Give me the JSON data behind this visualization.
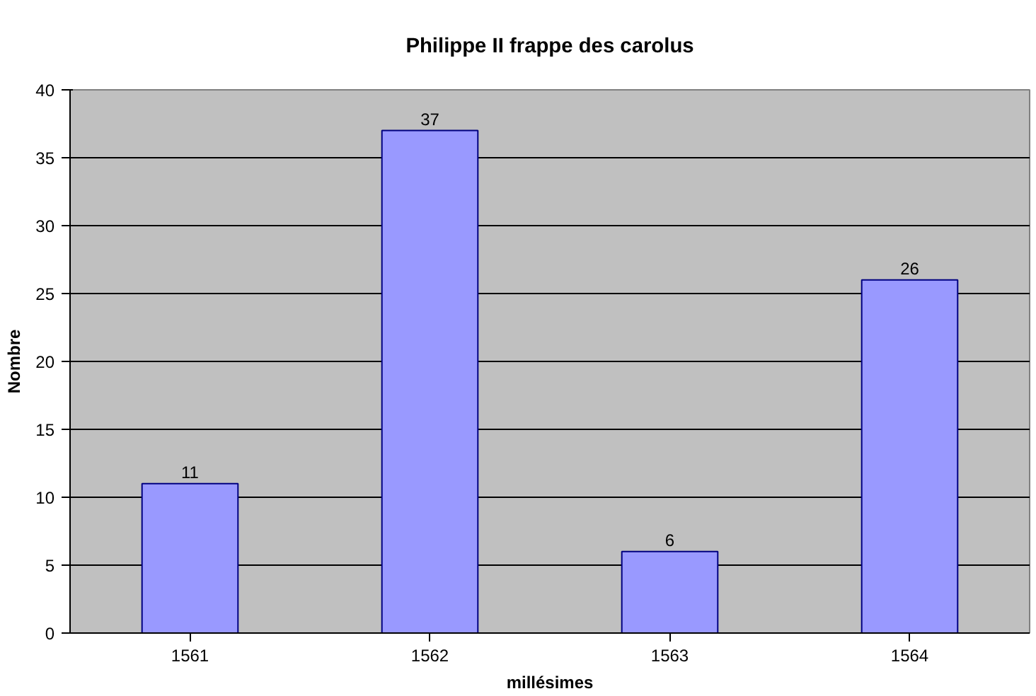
{
  "chart_data": {
    "type": "bar",
    "title": "Philippe II frappe des carolus",
    "xlabel": "millésimes",
    "ylabel": "Nombre",
    "categories": [
      "1561",
      "1562",
      "1563",
      "1564"
    ],
    "values": [
      11,
      37,
      6,
      26
    ],
    "color": "#9999ff",
    "ylim": [
      0,
      40
    ],
    "yticks": [
      0,
      5,
      10,
      15,
      20,
      25,
      30,
      35,
      40
    ],
    "grid": "y",
    "data_labels": true
  }
}
